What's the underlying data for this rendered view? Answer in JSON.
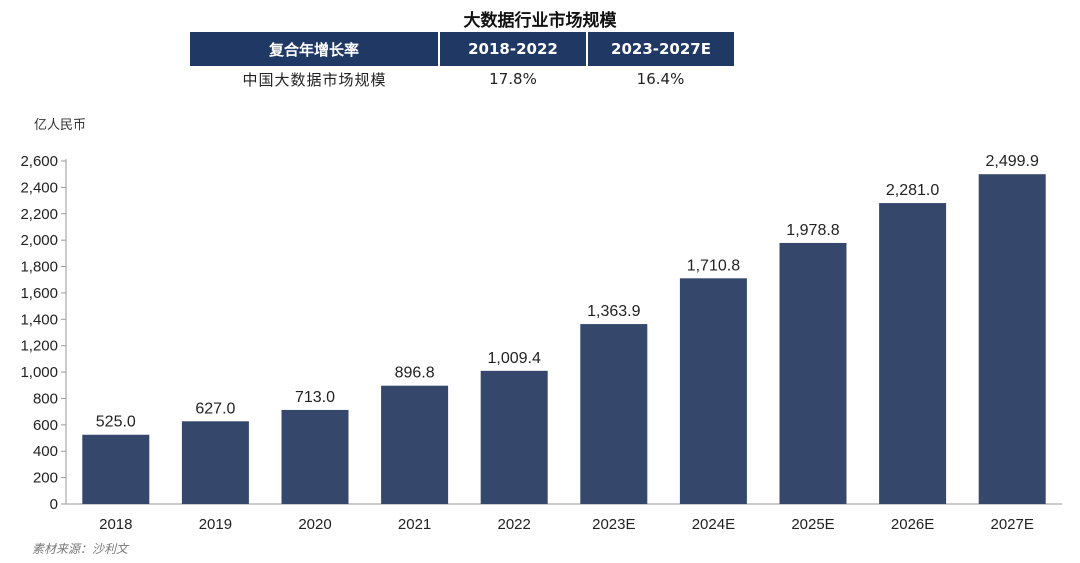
{
  "title": "大数据行业市场规模",
  "cagr_table": {
    "headers": [
      "复合年增长率",
      "2018-2022",
      "2023-2027E"
    ],
    "rows": [
      {
        "label": "中国大数据市场规模",
        "values": [
          "17.8%",
          "16.4%"
        ]
      }
    ]
  },
  "unit_label": "亿人民币",
  "source": "素材来源：沙利文",
  "colors": {
    "bar": "#35486b",
    "header": "#1f3864",
    "axis": "#9a9a9a"
  },
  "chart_data": {
    "type": "bar",
    "categories": [
      "2018",
      "2019",
      "2020",
      "2021",
      "2022",
      "2023E",
      "2024E",
      "2025E",
      "2026E",
      "2027E"
    ],
    "values": [
      525.0,
      627.0,
      713.0,
      896.8,
      1009.4,
      1363.9,
      1710.8,
      1978.8,
      2281.0,
      2499.9
    ],
    "data_labels": [
      "525.0",
      "627.0",
      "713.0",
      "896.8",
      "1,009.4",
      "1,363.9",
      "1,710.8",
      "1,978.8",
      "2,281.0",
      "2,499.9"
    ],
    "yticks": [
      "0",
      "200",
      "400",
      "600",
      "800",
      "1,000",
      "1,200",
      "1,400",
      "1,600",
      "1,800",
      "2,000",
      "2,200",
      "2,400",
      "2,600"
    ],
    "ylim": [
      0,
      2600
    ],
    "xlabel": "",
    "ylabel": "亿人民币",
    "grid": false
  }
}
